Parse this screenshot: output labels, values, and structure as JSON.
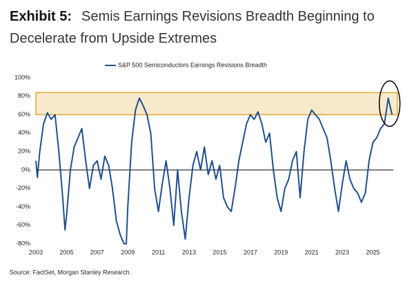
{
  "chart_data": {
    "type": "line",
    "exhibit": "Exhibit 5:",
    "title": "Semis Earnings Revisions Breadth Beginning to Decelerate from Upside Extremes",
    "source": "Source: FactSet, Morgan Stanley Research.",
    "x": [
      2003.0,
      2003.1,
      2003.25,
      2003.5,
      2003.75,
      2004.0,
      2004.25,
      2004.5,
      2004.75,
      2004.9,
      2005.0,
      2005.25,
      2005.5,
      2005.75,
      2006.0,
      2006.25,
      2006.5,
      2006.75,
      2007.0,
      2007.25,
      2007.5,
      2007.75,
      2008.0,
      2008.25,
      2008.5,
      2008.75,
      2008.9,
      2009.0,
      2009.25,
      2009.5,
      2009.75,
      2010.0,
      2010.25,
      2010.5,
      2010.75,
      2011.0,
      2011.25,
      2011.5,
      2011.75,
      2012.0,
      2012.25,
      2012.5,
      2012.75,
      2013.0,
      2013.25,
      2013.5,
      2013.75,
      2014.0,
      2014.25,
      2014.5,
      2014.75,
      2015.0,
      2015.25,
      2015.5,
      2015.75,
      2016.0,
      2016.25,
      2016.5,
      2016.75,
      2017.0,
      2017.25,
      2017.5,
      2017.75,
      2018.0,
      2018.25,
      2018.5,
      2018.75,
      2019.0,
      2019.25,
      2019.5,
      2019.75,
      2020.0,
      2020.25,
      2020.5,
      2020.75,
      2021.0,
      2021.25,
      2021.5,
      2021.75,
      2022.0,
      2022.25,
      2022.5,
      2022.75,
      2023.0,
      2023.25,
      2023.5,
      2023.75,
      2024.0,
      2024.25,
      2024.5,
      2024.75,
      2025.0,
      2025.25,
      2025.5,
      2025.75,
      2026.0,
      2026.25
    ],
    "series": [
      {
        "name": "S&P 500 Semiconductors Earnings Revisions Breadth",
        "color": "#1f4e8c",
        "values": [
          10,
          -8,
          20,
          50,
          62,
          55,
          60,
          20,
          -30,
          -65,
          -50,
          0,
          25,
          35,
          45,
          10,
          -20,
          5,
          10,
          -10,
          15,
          5,
          -20,
          -55,
          -70,
          -80,
          -80,
          -40,
          30,
          65,
          78,
          70,
          60,
          40,
          -20,
          -45,
          -15,
          10,
          -20,
          -60,
          0,
          -45,
          -75,
          -30,
          5,
          20,
          0,
          25,
          -5,
          10,
          -10,
          5,
          -30,
          -40,
          -45,
          -20,
          10,
          30,
          50,
          60,
          55,
          63,
          50,
          30,
          40,
          0,
          -30,
          -45,
          -20,
          -10,
          10,
          20,
          -30,
          20,
          55,
          65,
          60,
          55,
          45,
          35,
          10,
          -20,
          -45,
          -15,
          10,
          -10,
          -20,
          -25,
          -35,
          -25,
          10,
          30,
          35,
          45,
          50,
          78,
          60
        ]
      }
    ],
    "xlim": [
      2003,
      2026.6
    ],
    "xticks": [
      2003,
      2005,
      2007,
      2009,
      2011,
      2013,
      2015,
      2017,
      2019,
      2021,
      2023,
      2025
    ],
    "ylim": [
      -80,
      100
    ],
    "yticks": [
      {
        "value": 100,
        "label": "100%"
      },
      {
        "value": 80,
        "label": "80%"
      },
      {
        "value": 60,
        "label": "60%"
      },
      {
        "value": 40,
        "label": "40%"
      },
      {
        "value": 20,
        "label": "20%"
      },
      {
        "value": 0,
        "label": "0%"
      },
      {
        "value": -20,
        "label": "-20%"
      },
      {
        "value": -40,
        "label": "-40%"
      },
      {
        "value": -60,
        "label": "-60%"
      },
      {
        "value": -80,
        "label": "-80%"
      }
    ],
    "highlight_band": {
      "ymin": 60,
      "ymax": 84,
      "color": "#e0a830"
    }
  }
}
